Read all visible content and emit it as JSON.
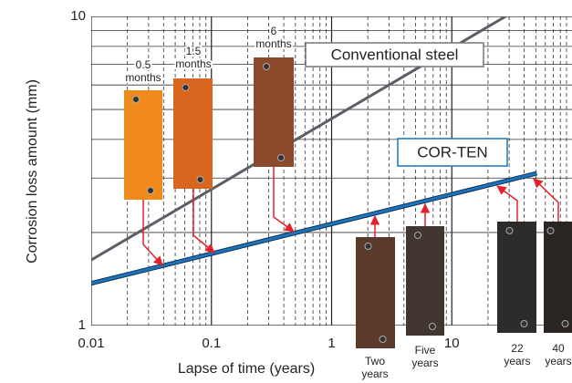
{
  "chart_data": {
    "type": "line",
    "xlabel": "Lapse of time (years)",
    "ylabel": "Corrosion loss amount (mm)",
    "xscale": "log",
    "yscale": "log",
    "xlim": [
      0.01,
      100
    ],
    "ylim": [
      1,
      10
    ],
    "xticks": [
      0.01,
      0.1,
      1,
      10
    ],
    "yticks": [
      1,
      10
    ],
    "xminorticks": [
      0.02,
      0.03,
      0.04,
      0.05,
      0.06,
      0.07,
      0.08,
      0.09,
      0.2,
      0.3,
      0.4,
      0.5,
      0.6,
      0.7,
      0.8,
      0.9,
      2,
      3,
      4,
      5,
      6,
      7,
      8,
      9,
      20,
      30,
      40,
      50,
      60,
      70,
      80,
      90
    ],
    "yminorticks": [
      2,
      3,
      4,
      5,
      6,
      7,
      8,
      9
    ],
    "grid": true,
    "series": [
      {
        "name": "Conventional steel",
        "color": "#5b5f66",
        "x": [
          0.01,
          28
        ],
        "values": [
          1.63,
          10
        ]
      },
      {
        "name": "COR-TEN",
        "color": "#1d74b8",
        "x": [
          0.01,
          51
        ],
        "values": [
          1.37,
          3.11
        ]
      }
    ],
    "samples": [
      {
        "label": [
          "0.5",
          "months"
        ],
        "color": "#f08a1c"
      },
      {
        "label": [
          "1.5",
          "months"
        ],
        "color": "#d8661f"
      },
      {
        "label": [
          "6",
          "months"
        ],
        "color": "#8b4a2c"
      },
      {
        "label": [
          "Two",
          "years"
        ],
        "color": "#5a3a2a"
      },
      {
        "label": [
          "Five",
          "years"
        ],
        "color": "#40352f"
      },
      {
        "label": [
          "22",
          "years"
        ],
        "color": "#2e2c2a"
      },
      {
        "label": [
          "40",
          "years"
        ],
        "color": "#2a2522"
      }
    ],
    "arrow_color": "#e8202a"
  }
}
